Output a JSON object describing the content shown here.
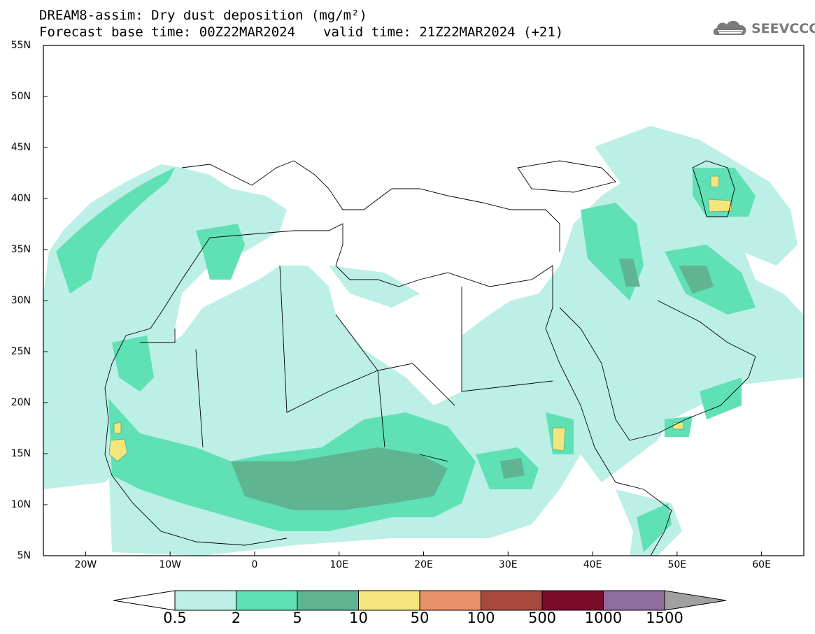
{
  "title_line1": "DREAM8-assim: Dry dust deposition (mg/m²)",
  "title_base": "Forecast base time: 00Z22MAR2024",
  "title_valid": "valid time: 21Z22MAR2024 (+21)",
  "logo_text": "SEEVCCC",
  "logo_icon": "cloud-logo-icon",
  "lat_labels": [
    "55N",
    "50N",
    "45N",
    "40N",
    "35N",
    "30N",
    "25N",
    "20N",
    "15N",
    "10N",
    "5N"
  ],
  "lon_labels": [
    "20W",
    "10W",
    "0",
    "10E",
    "20E",
    "30E",
    "40E",
    "50E",
    "60E"
  ],
  "colorbar": {
    "labels": [
      "0.5",
      "2",
      "5",
      "10",
      "50",
      "100",
      "500",
      "1000",
      "1500"
    ],
    "colors": [
      "#ffffff",
      "#bcefe6",
      "#5fe0b5",
      "#5fb592",
      "#f4e67c",
      "#e8916a",
      "#a8493d",
      "#7a0b2a",
      "#8f6b9e",
      "#a0a0a0"
    ]
  },
  "map_extent": {
    "lon": [
      -25,
      65
    ],
    "lat": [
      5,
      55
    ]
  }
}
